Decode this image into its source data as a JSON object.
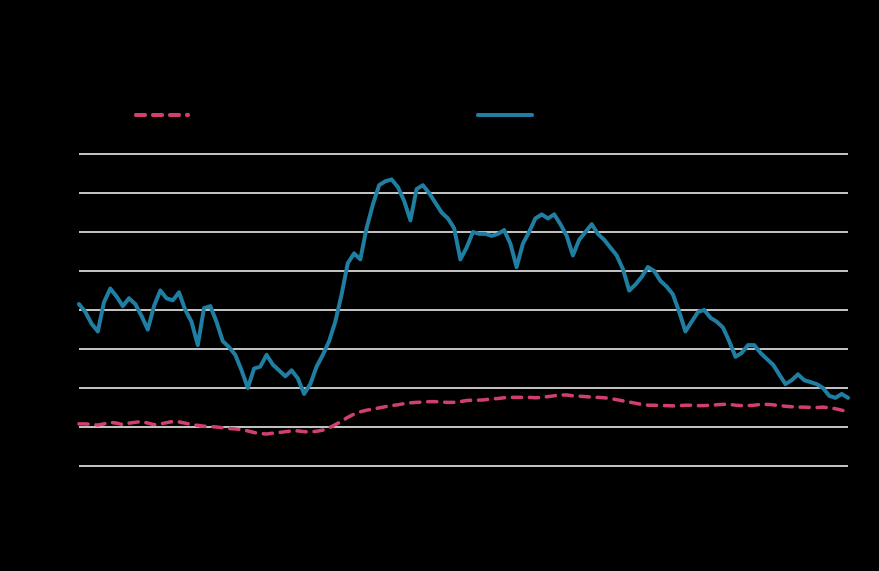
{
  "chart_data": {
    "type": "line",
    "title": "",
    "xlabel": "",
    "ylabel": "",
    "ylim": [
      0,
      8
    ],
    "yticks": [
      0,
      1,
      2,
      3,
      4,
      5,
      6,
      7,
      8
    ],
    "grid": true,
    "legend": "top",
    "background": "#000000",
    "grid_color": "#ffffff",
    "series": [
      {
        "style": "dashed",
        "color": "#d13f6e",
        "values": [
          1.08,
          1.08,
          1.07,
          1.05,
          1.08,
          1.12,
          1.1,
          1.06,
          1.1,
          1.12,
          1.14,
          1.1,
          1.06,
          1.08,
          1.11,
          1.14,
          1.13,
          1.1,
          1.06,
          1.04,
          1.02,
          1.01,
          1.0,
          0.98,
          0.96,
          0.95,
          0.93,
          0.9,
          0.86,
          0.83,
          0.82,
          0.84,
          0.86,
          0.88,
          0.9,
          0.9,
          0.88,
          0.88,
          0.89,
          0.92,
          0.98,
          1.06,
          1.15,
          1.25,
          1.33,
          1.39,
          1.43,
          1.46,
          1.49,
          1.52,
          1.55,
          1.57,
          1.6,
          1.62,
          1.63,
          1.64,
          1.65,
          1.65,
          1.64,
          1.63,
          1.63,
          1.65,
          1.68,
          1.69,
          1.69,
          1.7,
          1.72,
          1.73,
          1.75,
          1.76,
          1.76,
          1.76,
          1.76,
          1.75,
          1.76,
          1.78,
          1.8,
          1.82,
          1.82,
          1.8,
          1.79,
          1.78,
          1.77,
          1.76,
          1.75,
          1.73,
          1.7,
          1.67,
          1.64,
          1.61,
          1.58,
          1.56,
          1.56,
          1.55,
          1.55,
          1.54,
          1.55,
          1.56,
          1.56,
          1.55,
          1.55,
          1.56,
          1.57,
          1.58,
          1.58,
          1.56,
          1.55,
          1.55,
          1.56,
          1.58,
          1.58,
          1.57,
          1.55,
          1.53,
          1.52,
          1.51,
          1.51,
          1.5,
          1.5,
          1.51,
          1.49,
          1.47,
          1.43,
          1.4
        ]
      },
      {
        "style": "solid",
        "color": "#1f7ea1",
        "values": [
          4.15,
          3.95,
          3.65,
          3.45,
          4.2,
          4.55,
          4.35,
          4.1,
          4.3,
          4.15,
          3.85,
          3.5,
          4.1,
          4.5,
          4.3,
          4.25,
          4.45,
          4.0,
          3.7,
          3.1,
          4.05,
          4.1,
          3.7,
          3.2,
          3.05,
          2.85,
          2.45,
          2.0,
          2.5,
          2.55,
          2.85,
          2.6,
          2.45,
          2.3,
          2.45,
          2.25,
          1.85,
          2.1,
          2.55,
          2.85,
          3.2,
          3.7,
          4.4,
          5.2,
          5.45,
          5.3,
          6.1,
          6.7,
          7.2,
          7.3,
          7.35,
          7.15,
          6.8,
          6.3,
          7.1,
          7.2,
          7.0,
          6.75,
          6.5,
          6.35,
          6.1,
          5.3,
          5.6,
          6.0,
          5.95,
          5.95,
          5.9,
          5.95,
          6.05,
          5.7,
          5.1,
          5.7,
          6.0,
          6.35,
          6.45,
          6.35,
          6.45,
          6.2,
          5.9,
          5.4,
          5.8,
          6.0,
          6.2,
          5.95,
          5.8,
          5.6,
          5.4,
          5.05,
          4.5,
          4.65,
          4.85,
          5.1,
          5.0,
          4.75,
          4.6,
          4.4,
          3.95,
          3.45,
          3.7,
          3.95,
          4.0,
          3.8,
          3.7,
          3.55,
          3.2,
          2.8,
          2.9,
          3.1,
          3.1,
          2.9,
          2.75,
          2.6,
          2.35,
          2.1,
          2.2,
          2.35,
          2.2,
          2.15,
          2.1,
          2.0,
          1.8,
          1.75,
          1.85,
          1.75
        ]
      }
    ]
  }
}
